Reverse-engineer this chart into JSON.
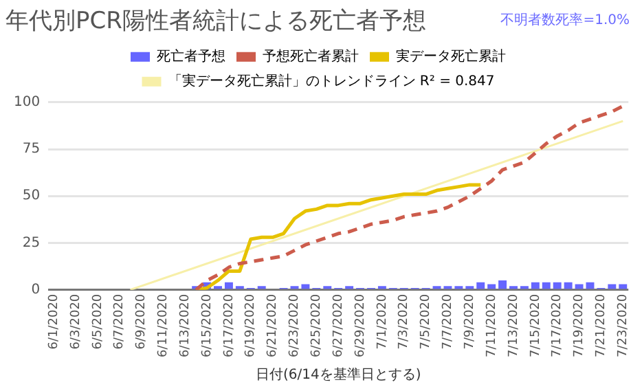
{
  "chart_data": {
    "type": "bar",
    "title": "年代別PCR陽性者統計による死亡者予想",
    "xlabel": "日付(6/14を基準日とする)",
    "annotations": [
      "不明者数死率=1.0%"
    ],
    "categories": [
      "6/1/2020",
      null,
      "6/3/2020",
      null,
      "6/5/2020",
      null,
      "6/7/2020",
      null,
      "6/9/2020",
      null,
      "6/11/2020",
      null,
      "6/13/2020",
      null,
      "6/15/2020",
      null,
      "6/17/2020",
      null,
      "6/19/2020",
      null,
      "6/21/2020",
      null,
      "6/23/2020",
      null,
      "6/25/2020",
      null,
      "6/27/2020",
      null,
      "6/29/2020",
      null,
      "7/1/2020",
      null,
      "7/3/2020",
      null,
      "7/5/2020",
      null,
      "7/7/2020",
      null,
      "7/9/2020",
      null,
      "7/11/2020",
      null,
      "7/13/2020",
      null,
      "7/15/2020",
      null,
      "7/17/2020",
      null,
      "7/19/2020",
      null,
      "7/21/2020",
      null,
      "7/23/2020"
    ],
    "series": [
      {
        "name": "死亡者予想",
        "color": "#6666ff",
        "values": [
          0,
          0,
          0,
          0,
          0,
          0,
          0,
          0,
          0,
          0,
          0,
          0,
          0,
          2,
          4,
          2,
          4,
          2,
          1,
          2,
          0,
          1,
          2,
          3,
          1,
          2,
          1,
          2,
          1,
          1,
          2,
          1,
          1,
          1,
          1,
          2,
          2,
          2,
          2,
          4,
          3,
          5,
          2,
          2,
          4,
          4,
          4,
          4,
          3,
          4,
          1,
          3,
          3
        ]
      },
      {
        "name": "予想死亡者累計",
        "type": "line",
        "line_style": "dashed",
        "color": "#cc5c4c",
        "values": [
          null,
          null,
          null,
          null,
          null,
          null,
          null,
          null,
          null,
          null,
          null,
          null,
          null,
          0,
          5,
          8,
          12,
          14,
          15,
          16,
          17,
          18,
          21,
          24,
          26,
          28,
          30,
          31,
          33,
          35,
          36,
          37,
          39,
          40,
          41,
          42,
          44,
          47,
          50,
          54,
          58,
          64,
          66,
          68,
          73,
          78,
          82,
          85,
          89,
          91,
          93,
          95,
          98
        ]
      },
      {
        "name": "実データ死亡累計",
        "type": "line",
        "line_style": "solid",
        "color": "#e6c200",
        "values": [
          null,
          null,
          null,
          null,
          null,
          null,
          null,
          null,
          null,
          null,
          null,
          null,
          null,
          0,
          1,
          5,
          10,
          10,
          27,
          28,
          28,
          30,
          38,
          42,
          43,
          45,
          45,
          46,
          46,
          48,
          49,
          50,
          51,
          51,
          51,
          53,
          54,
          55,
          56,
          56,
          null,
          null,
          null,
          null,
          null,
          null,
          null,
          null,
          null,
          null,
          null,
          null,
          null
        ]
      },
      {
        "name": "「実データ死亡累計」のトレンドライン R² = 0.847",
        "type": "line",
        "line_style": "solid",
        "color": "#f7efa8",
        "values": [
          null,
          null,
          null,
          null,
          null,
          null,
          null,
          0,
          null,
          null,
          null,
          null,
          null,
          null,
          null,
          null,
          null,
          null,
          null,
          null,
          null,
          null,
          null,
          null,
          null,
          null,
          null,
          null,
          null,
          null,
          null,
          null,
          null,
          null,
          null,
          null,
          null,
          null,
          null,
          null,
          null,
          null,
          null,
          null,
          null,
          null,
          null,
          null,
          null,
          null,
          null,
          null,
          90
        ]
      }
    ],
    "ylim": [
      0,
      100
    ],
    "yticks": [
      0,
      25,
      50,
      75,
      100
    ],
    "grid": "y",
    "legend": "top",
    "marker": "none"
  }
}
